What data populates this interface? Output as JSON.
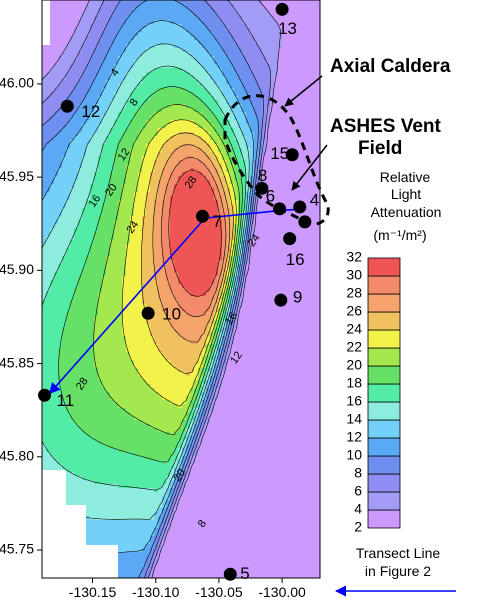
{
  "chart_data": {
    "type": "heatmap",
    "subtype": "contour-map",
    "xlim": [
      -130.19,
      -129.97
    ],
    "ylim": [
      45.735,
      46.045
    ],
    "x_ticks": [
      -130.15,
      -130.1,
      -130.05,
      -130.0
    ],
    "x_tick_labels": [
      "-130.15",
      "-130.10",
      "-130.05",
      "-130.00"
    ],
    "y_ticks": [
      45.75,
      45.8,
      45.85,
      45.9,
      45.95,
      46.0
    ],
    "y_tick_labels": [
      "45.75",
      "45.80",
      "45.85",
      "45.90",
      "45.95",
      "46.00"
    ],
    "contour_levels": [
      2,
      4,
      6,
      8,
      10,
      12,
      14,
      16,
      18,
      20,
      22,
      24,
      26,
      28,
      30,
      32
    ],
    "contour_labels": [
      {
        "text": "4",
        "lon": -130.132,
        "lat": 46.006
      },
      {
        "text": "8",
        "lon": -130.117,
        "lat": 45.99
      },
      {
        "text": "12",
        "lon": -130.125,
        "lat": 45.962
      },
      {
        "text": "16",
        "lon": -130.148,
        "lat": 45.937
      },
      {
        "text": "20",
        "lon": -130.135,
        "lat": 45.943
      },
      {
        "text": "24",
        "lon": -130.118,
        "lat": 45.923
      },
      {
        "text": "28",
        "lon": -130.072,
        "lat": 45.947
      },
      {
        "text": "24",
        "lon": -130.022,
        "lat": 45.916
      },
      {
        "text": "16",
        "lon": -130.04,
        "lat": 45.874
      },
      {
        "text": "12",
        "lon": -130.036,
        "lat": 45.853
      },
      {
        "text": "20",
        "lon": -130.081,
        "lat": 45.79
      },
      {
        "text": "8",
        "lon": -130.063,
        "lat": 45.764
      },
      {
        "text": "28",
        "lon": -130.158,
        "lat": 45.839
      }
    ],
    "colorbar": {
      "title": [
        "Relative",
        "Light",
        "Attenuation",
        "(m⁻¹/m²)"
      ],
      "levels": [
        2,
        4,
        6,
        8,
        10,
        12,
        14,
        16,
        18,
        20,
        22,
        24,
        26,
        28,
        30,
        32
      ],
      "colors": [
        "#ffffff",
        "#cc99ff",
        "#a39cf6",
        "#8f8cf2",
        "#6f8ff0",
        "#5ba8f5",
        "#73d0f8",
        "#8eecdf",
        "#53eca6",
        "#66e066",
        "#a3e84f",
        "#f2f24a",
        "#f0c15f",
        "#f4a36a",
        "#f38a6a",
        "#f05555"
      ]
    },
    "stations": [
      {
        "id": "13",
        "lon": -130.0,
        "lat": 46.04
      },
      {
        "id": "12",
        "lon": -130.17,
        "lat": 45.988
      },
      {
        "id": "15",
        "lon": -129.992,
        "lat": 45.962
      },
      {
        "id": "8",
        "lon": -130.016,
        "lat": 45.944
      },
      {
        "id": "6",
        "lon": -130.002,
        "lat": 45.933
      },
      {
        "id": "4",
        "lon": -129.986,
        "lat": 45.934
      },
      {
        "id": "7",
        "lon": -130.063,
        "lat": 45.929
      },
      {
        "id": "16",
        "lon": -129.994,
        "lat": 45.917
      },
      {
        "id": "9",
        "lon": -130.001,
        "lat": 45.884
      },
      {
        "id": "10",
        "lon": -130.106,
        "lat": 45.877
      },
      {
        "id": "11",
        "lon": -130.188,
        "lat": 45.833
      },
      {
        "id": "5",
        "lon": -130.041,
        "lat": 45.737
      }
    ],
    "extra_stations": [
      {
        "lon": -129.982,
        "lat": 45.926
      }
    ],
    "transect": [
      {
        "lon": -129.982,
        "lat": 45.933
      },
      {
        "lon": -130.003,
        "lat": 45.932
      },
      {
        "lon": -130.061,
        "lat": 45.928
      },
      {
        "lon": -130.184,
        "lat": 45.834
      }
    ],
    "annotations": [
      {
        "text": "Axial Caldera",
        "points_to": "caldera-rim"
      },
      {
        "text": "ASHES Vent\nField",
        "points_to": "station-cluster"
      }
    ],
    "legend": {
      "text": "Transect Line\nin Figure 2",
      "color": "#0000ff",
      "position": "bottom-right"
    }
  }
}
